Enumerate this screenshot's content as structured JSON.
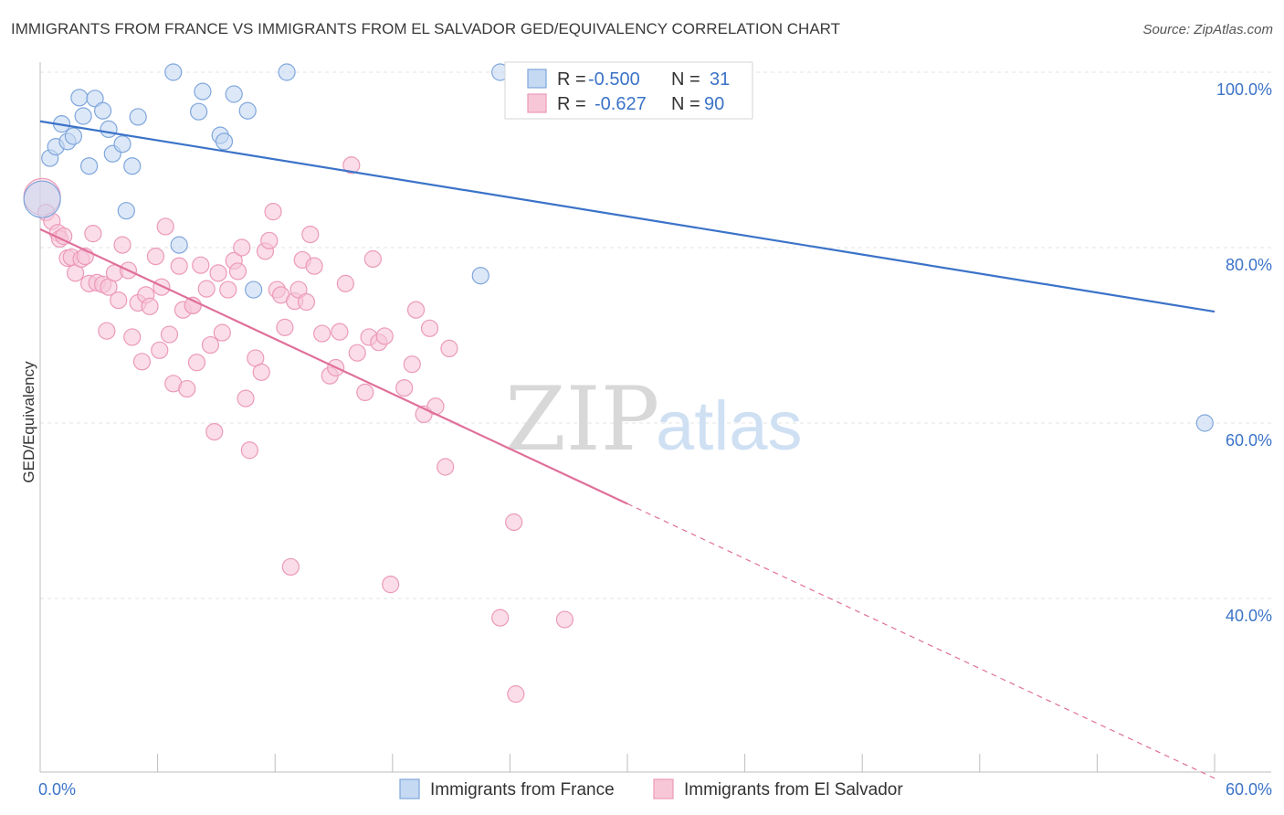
{
  "title": "IMMIGRANTS FROM FRANCE VS IMMIGRANTS FROM EL SALVADOR GED/EQUIVALENCY CORRELATION CHART",
  "source": "Source: ZipAtlas.com",
  "watermark": {
    "zip": "ZIP",
    "atlas": "atlas"
  },
  "colors": {
    "france": "#3b73c8",
    "france_fill": "#c5d9f3",
    "france_stroke": "#7fa6dc",
    "elsalvador": "#e0709a",
    "elsalvador_fill": "#f7c7d8",
    "elsalvador_stroke": "#ec9ab8",
    "grid": "#e3e3e3",
    "axis": "#bdbdbd"
  },
  "legend": {
    "r_label": "R =",
    "n_label": "N =",
    "france_r": "-0.500",
    "france_n": "31",
    "elsalvador_r": "-0.627",
    "elsalvador_n": "90"
  },
  "chart_data": {
    "type": "scatter",
    "title": "IMMIGRANTS FROM FRANCE VS IMMIGRANTS FROM EL SALVADOR GED/EQUIVALENCY CORRELATION CHART",
    "xlabel": "",
    "ylabel": "GED/Equivalency",
    "xlim": [
      0,
      60
    ],
    "ylim": [
      20,
      102
    ],
    "x_ticks": [
      0,
      6,
      12,
      18,
      24,
      30,
      36,
      42,
      48,
      54,
      60
    ],
    "x_tick_labels": [
      {
        "value": 0,
        "label": "0.0%"
      },
      {
        "value": 60,
        "label": "60.0%"
      }
    ],
    "y_ticks": [
      {
        "value": 100,
        "label": "100.0%"
      },
      {
        "value": 80,
        "label": "80.0%"
      },
      {
        "value": 60,
        "label": "60.0%"
      },
      {
        "value": 40,
        "label": "40.0%"
      }
    ],
    "grid": true,
    "legend_position": "top-center",
    "series": [
      {
        "name": "Immigrants from France",
        "r": -0.5,
        "n": 31,
        "trend": {
          "x0": 0,
          "y0": 94.4,
          "x1": 60,
          "y1": 72.7,
          "solid_until": 60
        },
        "points": [
          {
            "x": 0.1,
            "y": 85.5,
            "big": true
          },
          {
            "x": 0.5,
            "y": 90.2
          },
          {
            "x": 0.8,
            "y": 91.5
          },
          {
            "x": 1.1,
            "y": 94.1
          },
          {
            "x": 1.4,
            "y": 92.1
          },
          {
            "x": 1.7,
            "y": 92.7
          },
          {
            "x": 2.0,
            "y": 97.1
          },
          {
            "x": 2.2,
            "y": 95.0
          },
          {
            "x": 2.5,
            "y": 89.3
          },
          {
            "x": 2.8,
            "y": 97.0
          },
          {
            "x": 3.2,
            "y": 95.6
          },
          {
            "x": 3.5,
            "y": 93.5
          },
          {
            "x": 3.7,
            "y": 90.7
          },
          {
            "x": 4.2,
            "y": 91.8
          },
          {
            "x": 4.4,
            "y": 84.2
          },
          {
            "x": 4.7,
            "y": 89.3
          },
          {
            "x": 5.0,
            "y": 94.9
          },
          {
            "x": 6.8,
            "y": 100.0
          },
          {
            "x": 7.1,
            "y": 80.3
          },
          {
            "x": 8.1,
            "y": 95.5
          },
          {
            "x": 8.3,
            "y": 97.8
          },
          {
            "x": 9.2,
            "y": 92.8
          },
          {
            "x": 9.4,
            "y": 92.1
          },
          {
            "x": 9.9,
            "y": 97.5
          },
          {
            "x": 10.6,
            "y": 95.6
          },
          {
            "x": 10.9,
            "y": 75.2
          },
          {
            "x": 12.6,
            "y": 100.0
          },
          {
            "x": 22.5,
            "y": 76.8
          },
          {
            "x": 23.5,
            "y": 100.0
          },
          {
            "x": 31.4,
            "y": 100.0
          },
          {
            "x": 59.5,
            "y": 60.0
          }
        ]
      },
      {
        "name": "Immigrants from El Salvador",
        "r": -0.627,
        "n": 90,
        "trend": {
          "x0": 0,
          "y0": 82.1,
          "x1": 60,
          "y1": 19.5,
          "solid_until": 30
        },
        "points": [
          {
            "x": 0.1,
            "y": 85.8,
            "big": true
          },
          {
            "x": 0.3,
            "y": 84.0
          },
          {
            "x": 0.6,
            "y": 83.0
          },
          {
            "x": 0.9,
            "y": 81.7
          },
          {
            "x": 1.0,
            "y": 81.0
          },
          {
            "x": 1.2,
            "y": 81.3
          },
          {
            "x": 1.4,
            "y": 78.8
          },
          {
            "x": 1.6,
            "y": 78.9
          },
          {
            "x": 1.8,
            "y": 77.1
          },
          {
            "x": 2.1,
            "y": 78.7
          },
          {
            "x": 2.3,
            "y": 79.0
          },
          {
            "x": 2.5,
            "y": 75.9
          },
          {
            "x": 2.7,
            "y": 81.6
          },
          {
            "x": 2.9,
            "y": 76.0
          },
          {
            "x": 3.2,
            "y": 75.8
          },
          {
            "x": 3.4,
            "y": 70.5
          },
          {
            "x": 3.5,
            "y": 75.5
          },
          {
            "x": 3.8,
            "y": 77.1
          },
          {
            "x": 4.0,
            "y": 74.0
          },
          {
            "x": 4.2,
            "y": 80.3
          },
          {
            "x": 4.5,
            "y": 77.4
          },
          {
            "x": 4.7,
            "y": 69.8
          },
          {
            "x": 5.0,
            "y": 73.7
          },
          {
            "x": 5.2,
            "y": 67.0
          },
          {
            "x": 5.4,
            "y": 74.6
          },
          {
            "x": 5.6,
            "y": 73.3
          },
          {
            "x": 5.9,
            "y": 79.0
          },
          {
            "x": 6.1,
            "y": 68.3
          },
          {
            "x": 6.2,
            "y": 75.5
          },
          {
            "x": 6.4,
            "y": 82.4
          },
          {
            "x": 6.6,
            "y": 70.1
          },
          {
            "x": 6.8,
            "y": 64.5
          },
          {
            "x": 7.1,
            "y": 77.9
          },
          {
            "x": 7.3,
            "y": 72.9
          },
          {
            "x": 7.5,
            "y": 63.9
          },
          {
            "x": 7.8,
            "y": 73.4
          },
          {
            "x": 8.0,
            "y": 66.9
          },
          {
            "x": 8.2,
            "y": 78.0
          },
          {
            "x": 8.5,
            "y": 75.3
          },
          {
            "x": 8.7,
            "y": 68.9
          },
          {
            "x": 8.9,
            "y": 59.0
          },
          {
            "x": 9.1,
            "y": 77.1
          },
          {
            "x": 9.3,
            "y": 70.3
          },
          {
            "x": 9.6,
            "y": 75.2
          },
          {
            "x": 9.9,
            "y": 78.5
          },
          {
            "x": 10.1,
            "y": 77.3
          },
          {
            "x": 10.3,
            "y": 80.0
          },
          {
            "x": 10.5,
            "y": 62.8
          },
          {
            "x": 10.7,
            "y": 56.9
          },
          {
            "x": 11.0,
            "y": 67.4
          },
          {
            "x": 11.3,
            "y": 65.8
          },
          {
            "x": 11.5,
            "y": 79.6
          },
          {
            "x": 11.7,
            "y": 80.8
          },
          {
            "x": 11.9,
            "y": 84.1
          },
          {
            "x": 12.1,
            "y": 75.2
          },
          {
            "x": 12.3,
            "y": 74.6
          },
          {
            "x": 12.5,
            "y": 70.9
          },
          {
            "x": 12.8,
            "y": 43.6
          },
          {
            "x": 13.0,
            "y": 73.9
          },
          {
            "x": 13.2,
            "y": 75.2
          },
          {
            "x": 13.4,
            "y": 78.6
          },
          {
            "x": 13.6,
            "y": 73.8
          },
          {
            "x": 13.8,
            "y": 81.5
          },
          {
            "x": 14.0,
            "y": 77.9
          },
          {
            "x": 14.4,
            "y": 70.2
          },
          {
            "x": 14.8,
            "y": 65.4
          },
          {
            "x": 15.1,
            "y": 66.3
          },
          {
            "x": 15.3,
            "y": 70.4
          },
          {
            "x": 15.6,
            "y": 75.9
          },
          {
            "x": 15.9,
            "y": 89.4
          },
          {
            "x": 16.2,
            "y": 68.0
          },
          {
            "x": 16.6,
            "y": 63.5
          },
          {
            "x": 16.8,
            "y": 69.8
          },
          {
            "x": 17.0,
            "y": 78.7
          },
          {
            "x": 17.3,
            "y": 69.2
          },
          {
            "x": 17.6,
            "y": 69.9
          },
          {
            "x": 17.9,
            "y": 41.6
          },
          {
            "x": 18.6,
            "y": 64.0
          },
          {
            "x": 19.0,
            "y": 66.7
          },
          {
            "x": 19.2,
            "y": 72.9
          },
          {
            "x": 19.6,
            "y": 61.0
          },
          {
            "x": 19.9,
            "y": 70.8
          },
          {
            "x": 20.2,
            "y": 61.9
          },
          {
            "x": 20.7,
            "y": 55.0
          },
          {
            "x": 20.9,
            "y": 68.5
          },
          {
            "x": 23.5,
            "y": 37.8
          },
          {
            "x": 24.2,
            "y": 48.7
          },
          {
            "x": 24.3,
            "y": 29.1
          },
          {
            "x": 26.8,
            "y": 37.6
          },
          {
            "x": 7.8,
            "y": 73.4
          }
        ]
      }
    ]
  }
}
